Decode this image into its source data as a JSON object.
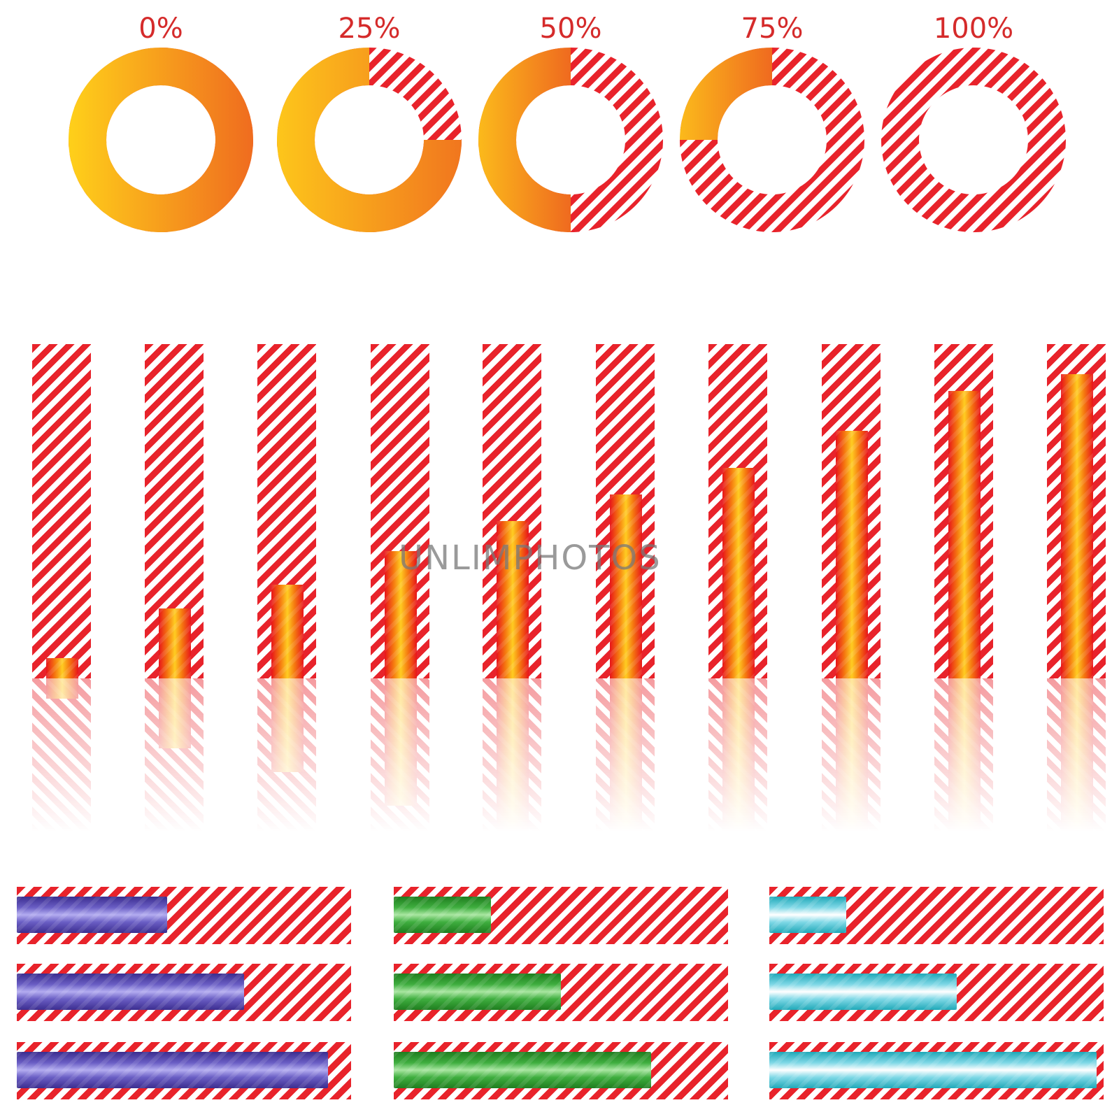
{
  "rings": [
    {
      "label": "0%",
      "value": 0
    },
    {
      "label": "25%",
      "value": 25
    },
    {
      "label": "50%",
      "value": 50
    },
    {
      "label": "75%",
      "value": 75
    },
    {
      "label": "100%",
      "value": 100
    }
  ],
  "vertical_bars": {
    "fill_percent": [
      6,
      21,
      28,
      38,
      47,
      55,
      63,
      74,
      86,
      91
    ]
  },
  "horizontal_bars": {
    "columns": [
      {
        "color": "purple",
        "fill_percent": [
          45,
          68,
          93
        ]
      },
      {
        "color": "green",
        "fill_percent": [
          29,
          50,
          77
        ]
      },
      {
        "color": "cyan",
        "fill_percent": [
          23,
          56,
          98
        ]
      }
    ]
  },
  "watermark": "UNLIMPHOTOS",
  "colors": {
    "stripe_red": "#e8232b",
    "label_red": "#d52b2b",
    "ring_yellow": "#ffd21a",
    "ring_orange": "#ef6a1f"
  }
}
